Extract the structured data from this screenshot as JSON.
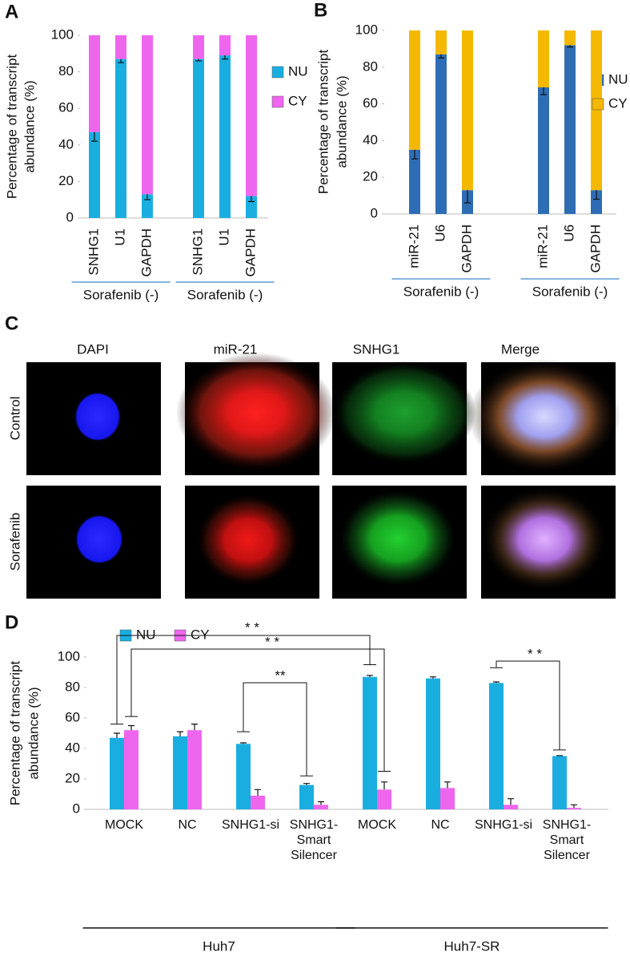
{
  "panel_labels": [
    "A",
    "B",
    "C",
    "D"
  ],
  "chart_data": [
    {
      "type": "bar",
      "stacked": true,
      "y_label": [
        "Percentage of transcript",
        "abundance (%)"
      ],
      "groups": [
        {
          "label": "Sorafenib (-)",
          "categories": [
            "SNHG1",
            "U1",
            "GAPDH"
          ]
        },
        {
          "label": "Sorafenib (-)",
          "categories": [
            "SNHG1",
            "U1",
            "GAPDH"
          ]
        }
      ],
      "series": [
        {
          "name": "NU",
          "color": "#1aaee0",
          "values": [
            47,
            87,
            13,
            87,
            89,
            12
          ],
          "errors": [
            5,
            2,
            3,
            1,
            2,
            3
          ]
        },
        {
          "name": "CY",
          "color": "#ee66ee",
          "values": [
            53,
            13,
            87,
            13,
            11,
            88
          ]
        }
      ],
      "ylim": [
        0,
        100
      ],
      "yticks": [
        0,
        20,
        40,
        60,
        80,
        100
      ],
      "grid": false
    },
    {
      "type": "bar",
      "stacked": true,
      "y_label": [
        "Percentage of transcript",
        "abundance (%)"
      ],
      "groups": [
        {
          "label": "Sorafenib (-)",
          "categories": [
            "miR-21",
            "U6",
            "GAPDH"
          ]
        },
        {
          "label": "Sorafenib (-)",
          "categories": [
            "miR-21",
            "U6",
            "GAPDH"
          ]
        }
      ],
      "series": [
        {
          "name": "NU",
          "color": "#2e6db5",
          "values": [
            35,
            87,
            13,
            69,
            92,
            13
          ],
          "errors": [
            5,
            2,
            7,
            4,
            1,
            5
          ]
        },
        {
          "name": "CY",
          "color": "#f5b800",
          "values": [
            65,
            13,
            87,
            31,
            8,
            87
          ]
        }
      ],
      "ylim": [
        0,
        100
      ],
      "yticks": [
        0,
        20,
        40,
        60,
        80,
        100
      ],
      "grid": false
    },
    {
      "type": "bar",
      "stacked": false,
      "y_label": [
        "Percentage of transcript",
        "abundance (%)"
      ],
      "groups": [
        {
          "label": "Huh7",
          "categories": [
            "MOCK",
            "NC",
            "SNHG1-si",
            "SNHG1-Smart Silencer"
          ]
        },
        {
          "label": "Huh7-SR",
          "categories": [
            "MOCK",
            "NC",
            "SNHG1-si",
            "SNHG1-Smart Silencer"
          ]
        }
      ],
      "series": [
        {
          "name": "NU",
          "color": "#1aaee0",
          "values": [
            47,
            48,
            43,
            16,
            87,
            86,
            83,
            35
          ],
          "errors": [
            3,
            3,
            0.7,
            1,
            1,
            1,
            0.7,
            0.3
          ]
        },
        {
          "name": "CY",
          "color": "#ee66ee",
          "values": [
            52,
            52,
            9,
            3,
            13,
            14,
            3,
            1
          ],
          "errors": [
            3,
            4,
            4,
            2,
            5,
            4,
            4,
            2
          ]
        }
      ],
      "annotations": [
        "* *",
        "* *",
        "**",
        "* *"
      ],
      "ylim": [
        0,
        100
      ],
      "yticks": [
        0,
        20,
        40,
        60,
        80,
        100
      ],
      "grid": false
    }
  ],
  "microscopy": {
    "columns": [
      "DAPI",
      "miR-21",
      "SNHG1",
      "Merge"
    ],
    "rows": [
      "Control",
      "Sorafenib"
    ]
  }
}
